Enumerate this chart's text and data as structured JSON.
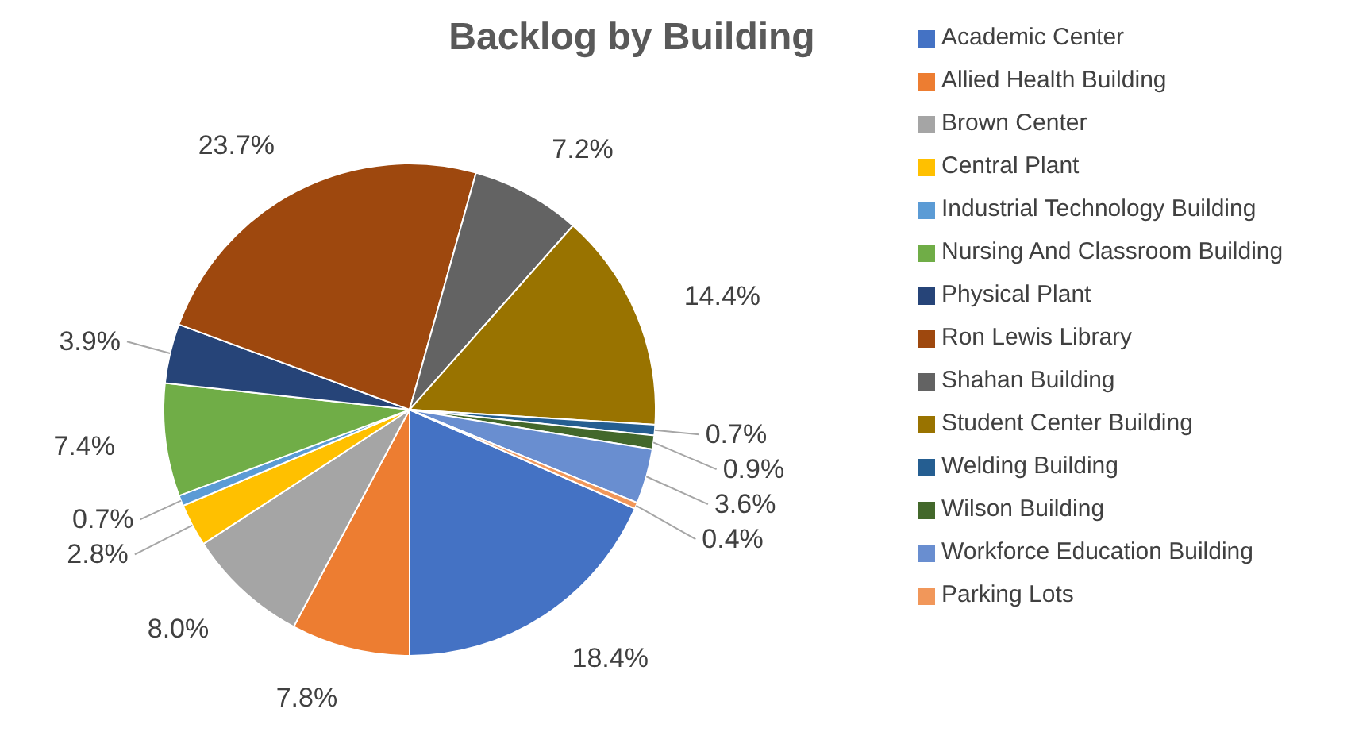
{
  "chart_data": {
    "type": "pie",
    "title": "Backlog by Building",
    "categories": [
      "Academic Center",
      "Allied Health Building",
      "Brown Center",
      "Central Plant",
      "Industrial Technology Building",
      "Nursing And Classroom Building",
      "Physical Plant",
      "Ron Lewis Library",
      "Shahan Building",
      "Student Center Building",
      "Welding Building",
      "Wilson Building",
      "Workforce Education Building",
      "Parking Lots"
    ],
    "values": [
      18.4,
      7.8,
      8.0,
      2.8,
      0.7,
      7.4,
      3.9,
      23.7,
      7.2,
      14.4,
      0.7,
      0.9,
      3.6,
      0.4
    ],
    "value_labels": [
      "18.4%",
      "7.8%",
      "8.0%",
      "2.8%",
      "0.7%",
      "7.4%",
      "3.9%",
      "23.7%",
      "7.2%",
      "14.4%",
      "0.7%",
      "0.9%",
      "3.6%",
      "0.4%"
    ],
    "colors": [
      "#4472c4",
      "#ed7d31",
      "#a5a5a5",
      "#ffc000",
      "#5b9bd5",
      "#70ad47",
      "#264478",
      "#9e480e",
      "#636363",
      "#997300",
      "#255e91",
      "#43682b",
      "#698ed0",
      "#f1975a"
    ],
    "legend": "right"
  }
}
